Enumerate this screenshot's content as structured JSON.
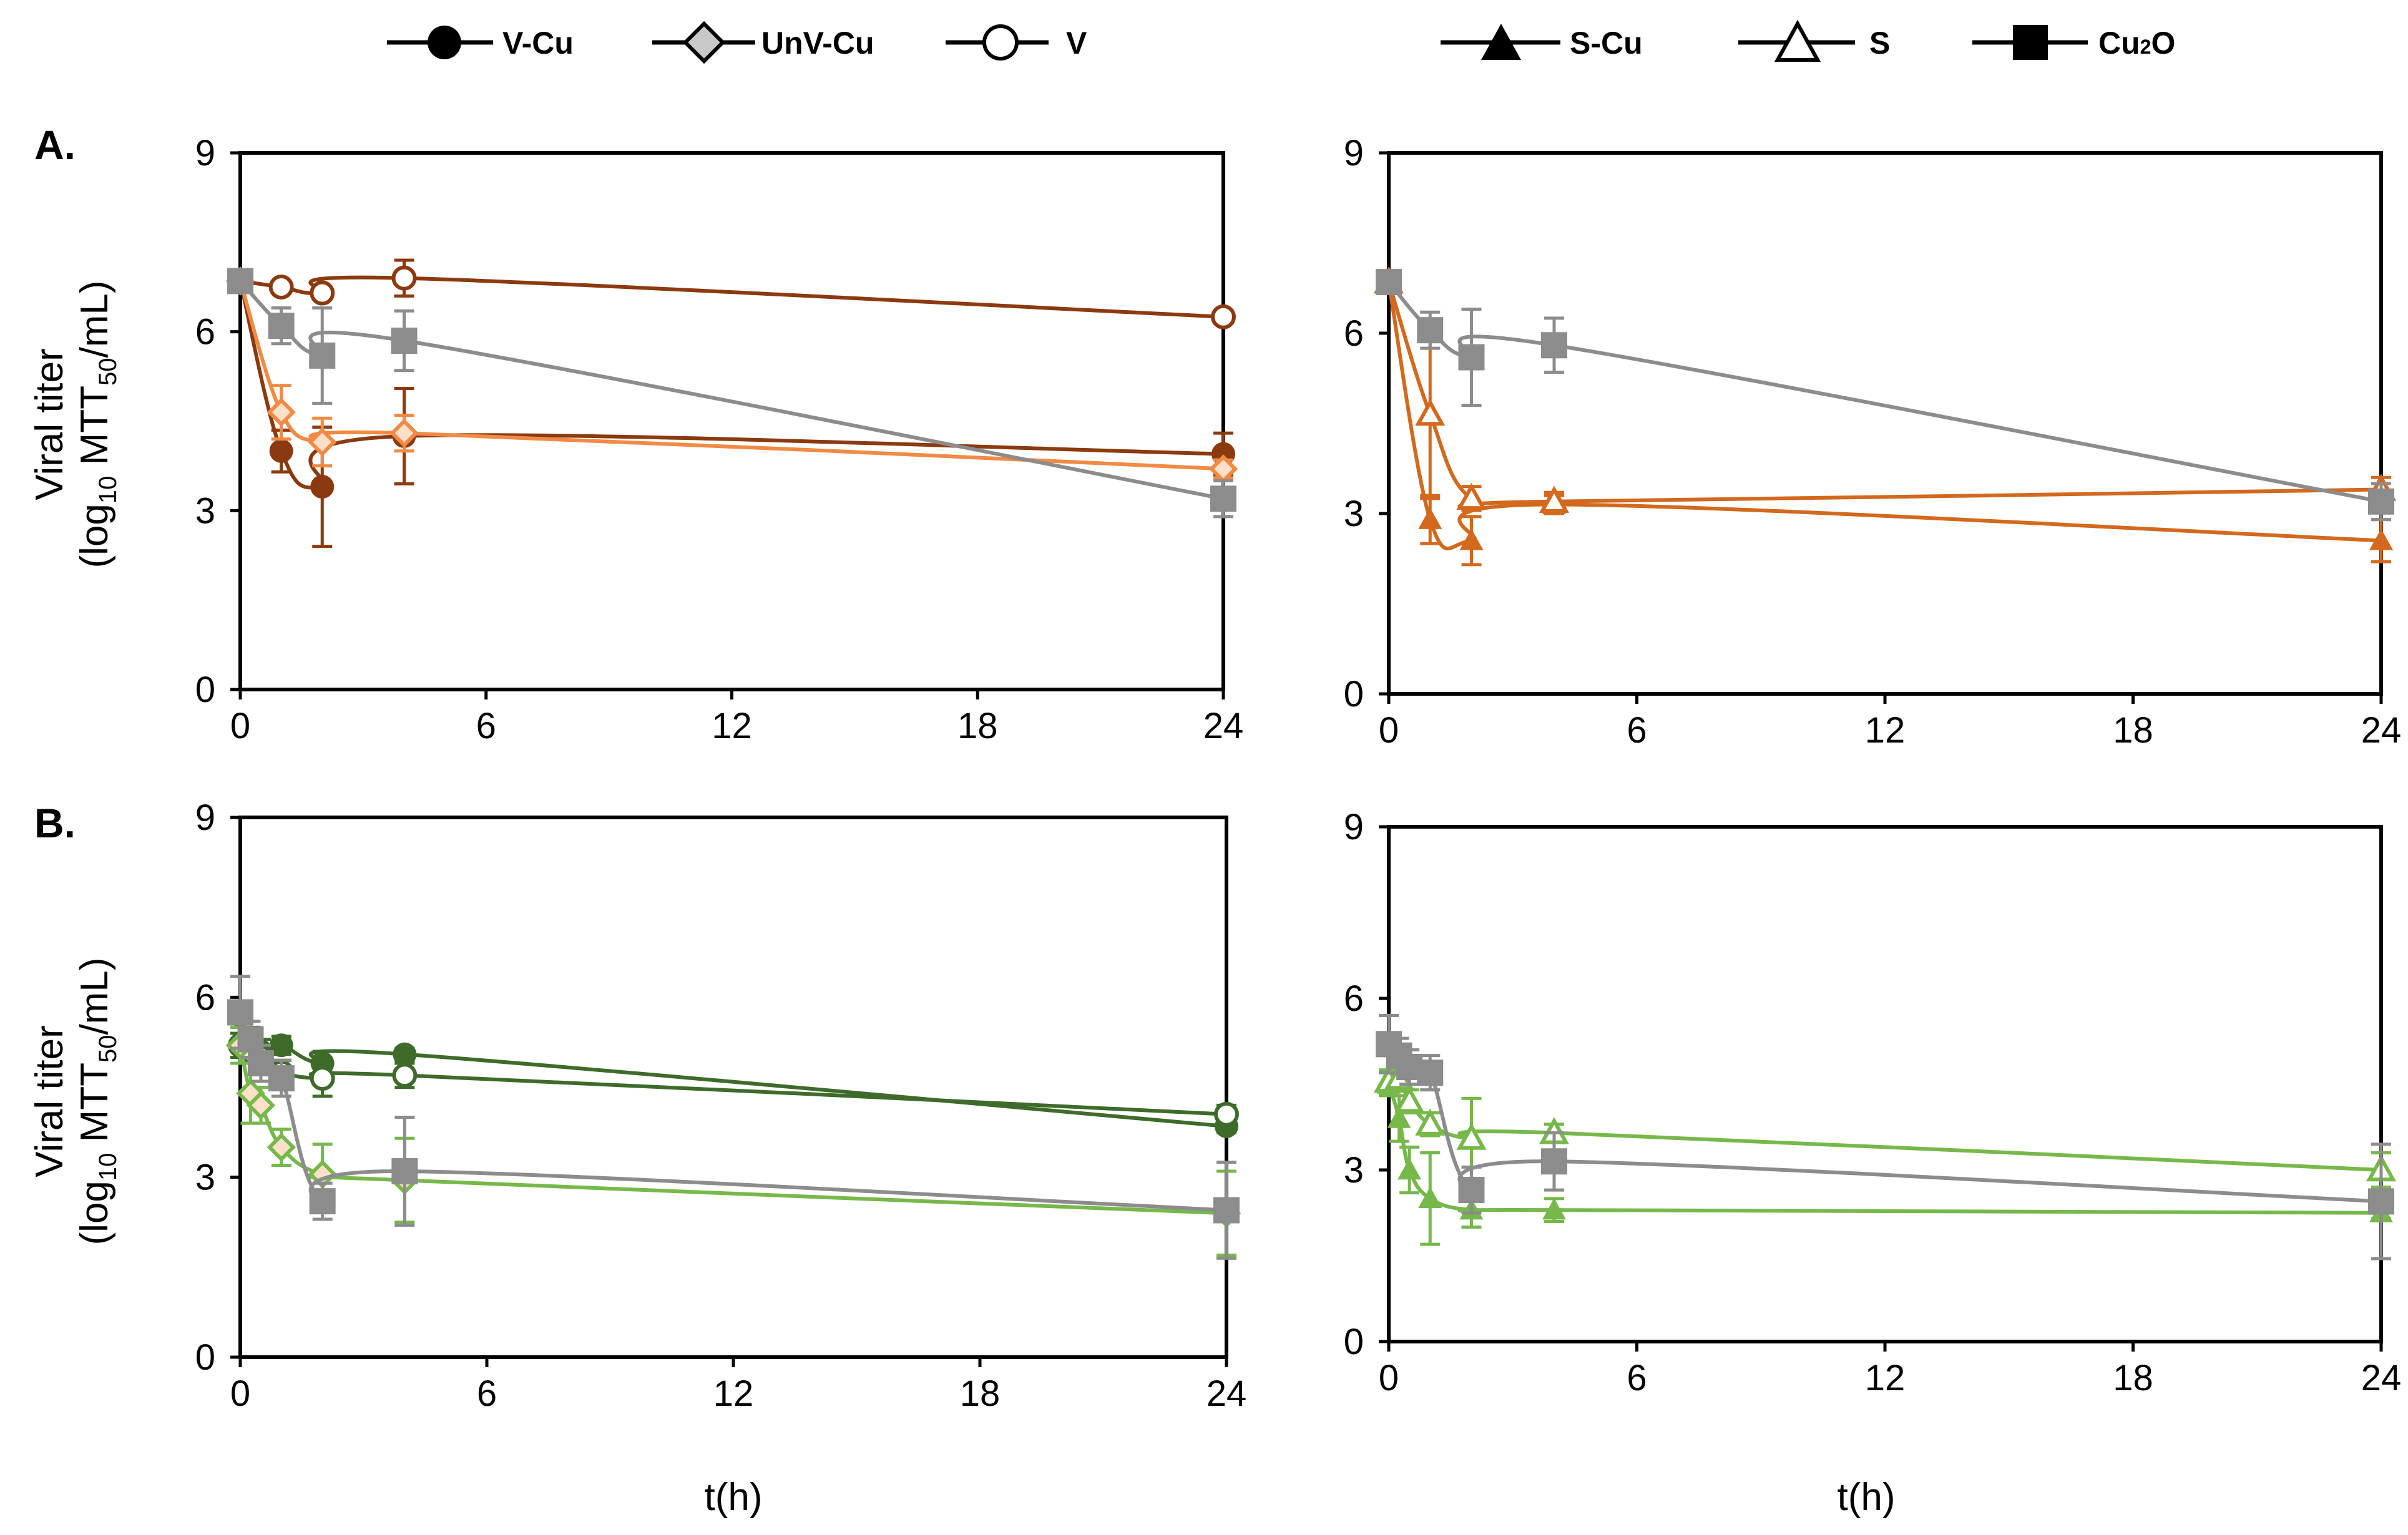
{
  "legend": [
    {
      "key": "V-Cu",
      "text": "V-Cu",
      "marker": "filled-circle"
    },
    {
      "key": "UnV-Cu",
      "text": "UnV-Cu",
      "marker": "gray-diamond"
    },
    {
      "key": "V",
      "text": "V",
      "marker": "open-circle"
    },
    {
      "key": "S-Cu",
      "text": "S-Cu",
      "marker": "filled-triangle"
    },
    {
      "key": "S",
      "text": "S",
      "marker": "open-triangle"
    },
    {
      "key": "Cu2O",
      "text": "Cu",
      "sub": "2",
      "after": "O",
      "marker": "filled-square"
    }
  ],
  "panel_labels": {
    "A": "A.",
    "B": "B."
  },
  "y_label": {
    "line1": "Viral titer",
    "pre": "(log",
    "sub1": "10",
    "mid": " MTT",
    "sub2": "50",
    "post": "/mL)"
  },
  "x_label": "t(h)",
  "colors": {
    "dark_brown": "#8b3a0f",
    "light_orange": "#f08a45",
    "orange": "#d2691e",
    "gray": "#8c8c8c",
    "dark_green": "#3e6b2a",
    "light_green": "#76b84a"
  },
  "chart_data": [
    {
      "id": "A-left",
      "type": "line",
      "xlim": [
        0,
        24
      ],
      "ylim": [
        0,
        9
      ],
      "xticks": [
        "0",
        "6",
        "12",
        "18",
        "24"
      ],
      "yticks": [
        "0",
        "3",
        "6",
        "9"
      ],
      "series": [
        {
          "name": "V",
          "color": "dark_brown",
          "marker": "open-circle",
          "x": [
            0,
            1,
            2,
            4,
            24
          ],
          "y": [
            6.85,
            6.75,
            6.65,
            6.9,
            6.25
          ],
          "err": [
            0.1,
            0.1,
            0.1,
            0.3,
            0.05
          ]
        },
        {
          "name": "V-Cu",
          "color": "dark_brown",
          "marker": "filled-circle",
          "x": [
            0,
            1,
            2,
            4,
            24
          ],
          "y": [
            6.85,
            4.0,
            3.4,
            4.25,
            3.95
          ],
          "err": [
            0.1,
            0.35,
            1.0,
            0.8,
            0.35
          ]
        },
        {
          "name": "UnV-Cu",
          "color": "light_orange",
          "marker": "light-diamond",
          "x": [
            0,
            1,
            2,
            4,
            24
          ],
          "y": [
            6.85,
            4.65,
            4.15,
            4.3,
            3.7
          ],
          "err": [
            0.1,
            0.45,
            0.4,
            0.3,
            0.15
          ]
        },
        {
          "name": "Cu2O",
          "color": "gray",
          "marker": "filled-square",
          "x": [
            0,
            1,
            2,
            4,
            24
          ],
          "y": [
            6.85,
            6.1,
            5.6,
            5.85,
            3.2
          ],
          "err": [
            0.1,
            0.3,
            0.8,
            0.5,
            0.3
          ]
        }
      ]
    },
    {
      "id": "A-right",
      "type": "line",
      "xlim": [
        0,
        24
      ],
      "ylim": [
        0,
        9
      ],
      "xticks": [
        "0",
        "6",
        "12",
        "18",
        "24"
      ],
      "yticks": [
        "0",
        "3",
        "6",
        "9"
      ],
      "series": [
        {
          "name": "S-Cu",
          "color": "orange",
          "marker": "filled-triangle",
          "x": [
            0,
            1,
            2,
            4,
            24
          ],
          "y": [
            6.85,
            2.9,
            2.55,
            3.15,
            2.55
          ],
          "err": [
            0.1,
            0.4,
            0.4,
            0.15,
            0.35
          ]
        },
        {
          "name": "S",
          "color": "orange",
          "marker": "open-triangle",
          "x": [
            0,
            1,
            2,
            4,
            24
          ],
          "y": [
            6.85,
            4.65,
            3.25,
            3.2,
            3.4
          ],
          "err": [
            0.1,
            1.4,
            0.2,
            0.15,
            0.2
          ]
        },
        {
          "name": "Cu2O",
          "color": "gray",
          "marker": "filled-square",
          "x": [
            0,
            1,
            2,
            4,
            24
          ],
          "y": [
            6.85,
            6.05,
            5.6,
            5.8,
            3.2
          ],
          "err": [
            0.1,
            0.3,
            0.8,
            0.45,
            0.3
          ]
        }
      ]
    },
    {
      "id": "B-left",
      "type": "line",
      "xlim": [
        0,
        24
      ],
      "ylim": [
        0,
        9
      ],
      "xticks": [
        "0",
        "6",
        "12",
        "18",
        "24"
      ],
      "yticks": [
        "0",
        "3",
        "6",
        "9"
      ],
      "series": [
        {
          "name": "V-Cu",
          "color": "dark_green",
          "marker": "filled-circle",
          "x": [
            0,
            0.25,
            0.5,
            1,
            2,
            4,
            24
          ],
          "y": [
            5.7,
            5.3,
            5.1,
            5.2,
            4.9,
            5.05,
            3.85
          ],
          "err": [
            0.2,
            0.2,
            0.2,
            0.15,
            0.2,
            0.1,
            0.1
          ]
        },
        {
          "name": "V",
          "color": "dark_green",
          "marker": "open-circle",
          "x": [
            0,
            0.25,
            0.5,
            1,
            2,
            4,
            24
          ],
          "y": [
            5.2,
            5.1,
            5.0,
            4.75,
            4.65,
            4.7,
            4.05
          ],
          "err": [
            0.2,
            0.2,
            0.2,
            0.2,
            0.3,
            0.2,
            0.15
          ]
        },
        {
          "name": "UnV-Cu",
          "color": "light_green",
          "marker": "light-diamond",
          "x": [
            0,
            0.25,
            0.5,
            1,
            2,
            4,
            24
          ],
          "y": [
            5.2,
            4.4,
            4.2,
            3.5,
            3.05,
            2.95,
            2.4
          ],
          "err": [
            0.3,
            0.5,
            0.3,
            0.3,
            0.5,
            0.7,
            0.7
          ]
        },
        {
          "name": "Cu2O",
          "color": "gray",
          "marker": "filled-square",
          "x": [
            0,
            0.25,
            0.5,
            1,
            2,
            4,
            24
          ],
          "y": [
            5.75,
            5.3,
            4.9,
            4.65,
            2.6,
            3.1,
            2.45
          ],
          "err": [
            0.6,
            0.3,
            0.3,
            0.3,
            0.3,
            0.9,
            0.8
          ]
        }
      ]
    },
    {
      "id": "B-right",
      "type": "line",
      "xlim": [
        0,
        24
      ],
      "ylim": [
        0,
        9
      ],
      "xticks": [
        "0",
        "6",
        "12",
        "18",
        "24"
      ],
      "yticks": [
        "0",
        "3",
        "6",
        "9"
      ],
      "series": [
        {
          "name": "S-Cu",
          "color": "light_green",
          "marker": "filled-triangle",
          "x": [
            0,
            0.25,
            0.5,
            1,
            2,
            4,
            24
          ],
          "y": [
            4.5,
            3.9,
            3.0,
            2.5,
            2.3,
            2.3,
            2.25
          ],
          "err": [
            0.2,
            0.4,
            0.4,
            0.8,
            0.3,
            0.2,
            0.1
          ]
        },
        {
          "name": "S",
          "color": "light_green",
          "marker": "open-triangle",
          "x": [
            0,
            0.25,
            0.5,
            1,
            2,
            4,
            24
          ],
          "y": [
            4.55,
            4.6,
            4.2,
            3.8,
            3.55,
            3.65,
            3.0
          ],
          "err": [
            0.2,
            0.2,
            0.2,
            0.2,
            0.7,
            0.15,
            0.3
          ]
        },
        {
          "name": "Cu2O",
          "color": "gray",
          "marker": "filled-square",
          "x": [
            0,
            0.25,
            0.5,
            1,
            2,
            4,
            24
          ],
          "y": [
            5.2,
            5.0,
            4.8,
            4.7,
            2.65,
            3.15,
            2.45
          ],
          "err": [
            0.5,
            0.3,
            0.3,
            0.3,
            0.4,
            0.5,
            1.0
          ]
        }
      ]
    }
  ]
}
